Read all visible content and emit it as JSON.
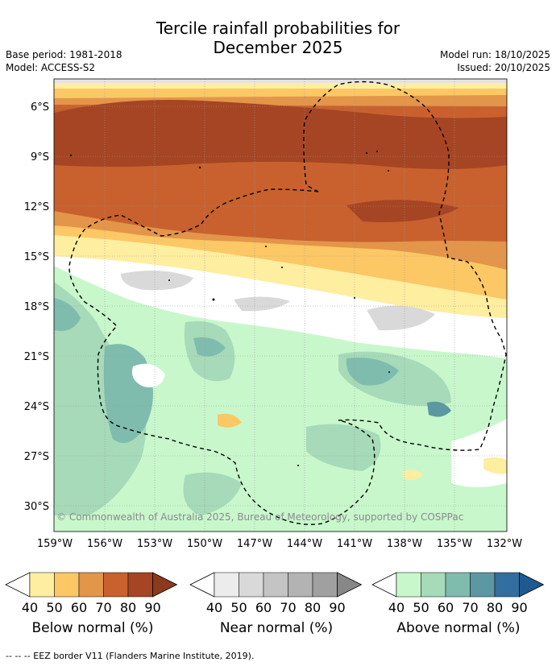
{
  "title": {
    "line1": "Tercile rainfall probabilities for",
    "line2": "December 2025"
  },
  "meta": {
    "base_period": "Base period: 1981-2018",
    "model": "Model: ACCESS-S2",
    "model_run": "Model run: 18/10/2025",
    "issued": "Issued: 20/10/2025"
  },
  "axes": {
    "lat_labels": [
      "6°S",
      "9°S",
      "12°S",
      "15°S",
      "18°S",
      "21°S",
      "24°S",
      "27°S",
      "30°S"
    ],
    "lon_labels": [
      "159°W",
      "156°W",
      "153°W",
      "150°W",
      "147°W",
      "144°W",
      "141°W",
      "138°W",
      "135°W",
      "132°W"
    ]
  },
  "copyright": "© Commonwealth of Australia 2025, Bureau of Meteorology, supported by COSPPac",
  "legends": [
    {
      "id": "below",
      "title": "Below normal (%)",
      "colors": [
        "#fdeea0",
        "#fcc765",
        "#e3954a",
        "#c8612e",
        "#a64523"
      ],
      "end_color": "#8b3a1e",
      "values": [
        "40",
        "50",
        "60",
        "70",
        "80",
        "90"
      ]
    },
    {
      "id": "near",
      "title": "Near normal (%)",
      "colors": [
        "#ececec",
        "#d9d9d9",
        "#c4c4c4",
        "#b3b3b3",
        "#a0a0a0"
      ],
      "end_color": "#878787",
      "values": [
        "40",
        "50",
        "60",
        "70",
        "80",
        "90"
      ]
    },
    {
      "id": "above",
      "title": "Above normal (%)",
      "colors": [
        "#c8f7cc",
        "#a6dab8",
        "#7fbcae",
        "#5b98a2",
        "#336ea0"
      ],
      "end_color": "#1e5a8f",
      "values": [
        "40",
        "50",
        "60",
        "70",
        "80",
        "90"
      ]
    }
  ],
  "footnote": "--  --  -- EEZ border V11 (Flanders Marine Institute, 2019)."
}
